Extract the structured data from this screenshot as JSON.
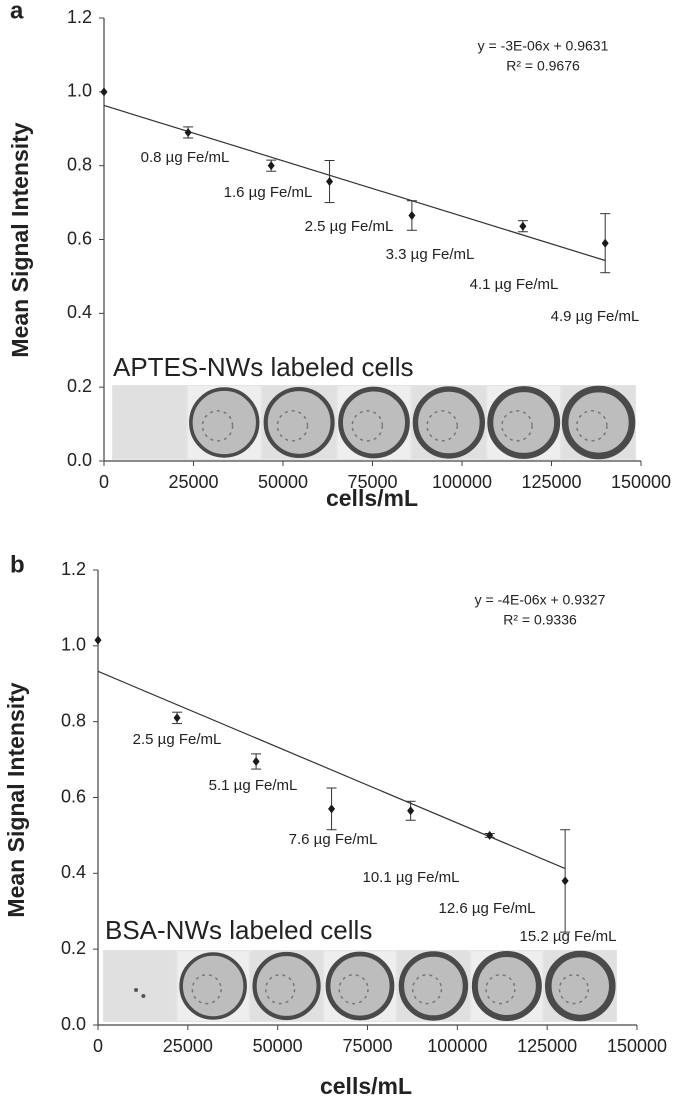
{
  "chart_data": [
    {
      "type": "scatter",
      "panel_label": "a",
      "xlabel": "cells/mL",
      "ylabel": "Mean Signal Intensity",
      "x": [
        0,
        23500,
        46700,
        63000,
        86000,
        117000,
        140000
      ],
      "values": [
        1.0,
        0.89,
        0.8,
        0.757,
        0.665,
        0.636,
        0.59
      ],
      "errors": [
        0,
        0.015,
        0.015,
        0.057,
        0.04,
        0.015,
        0.08
      ],
      "color": "#1a1a1a",
      "xlim": [
        0,
        150000
      ],
      "xticks": [
        0,
        25000,
        50000,
        75000,
        100000,
        125000,
        150000
      ],
      "ylim": [
        0,
        1.2
      ],
      "yticks": [
        {
          "value": 0,
          "label": "0.0"
        },
        {
          "value": 0.2,
          "label": "0.2"
        },
        {
          "value": 0.4,
          "label": "0.4"
        },
        {
          "value": 0.6,
          "label": "0.6"
        },
        {
          "value": 0.8,
          "label": "0.8"
        },
        {
          "value": 1.0,
          "label": "1.0"
        },
        {
          "value": 1.2,
          "label": "1.2"
        }
      ],
      "trendline": {
        "equation": "y = -3E-06x + 0.9631",
        "r2": "R² = 0.9676",
        "slope": -3e-06,
        "intercept": 0.9631
      },
      "annotations": [
        "0.8 µg Fe/mL",
        "1.6 µg Fe/mL",
        "2.5 µg Fe/mL",
        "3.3 µg Fe/mL",
        "4.1 µg Fe/mL",
        "4.9 µg Fe/mL"
      ],
      "inset_label": "APTES-NWs labeled cells"
    },
    {
      "type": "scatter",
      "panel_label": "b",
      "xlabel": "cells/mL",
      "ylabel": "Mean Signal Intensity",
      "x": [
        0,
        22000,
        44000,
        65000,
        87000,
        109000,
        130000
      ],
      "values": [
        1.015,
        0.81,
        0.695,
        0.57,
        0.565,
        0.5,
        0.38
      ],
      "errors": [
        0,
        0.015,
        0.02,
        0.055,
        0.025,
        0.005,
        0.135
      ],
      "color": "#1a1a1a",
      "xlim": [
        0,
        150000
      ],
      "xticks": [
        0,
        25000,
        50000,
        75000,
        100000,
        125000,
        150000
      ],
      "ylim": [
        0,
        1.2
      ],
      "yticks": [
        {
          "value": 0,
          "label": "0.0"
        },
        {
          "value": 0.2,
          "label": "0.2"
        },
        {
          "value": 0.4,
          "label": "0.4"
        },
        {
          "value": 0.6,
          "label": "0.6"
        },
        {
          "value": 0.8,
          "label": "0.8"
        },
        {
          "value": 1.0,
          "label": "1.0"
        },
        {
          "value": 1.2,
          "label": "1.2"
        }
      ],
      "trendline": {
        "equation": "y = -4E-06x + 0.9327",
        "r2": "R² = 0.9336",
        "slope": -4e-06,
        "intercept": 0.9327
      },
      "annotations": [
        "2.5 µg Fe/mL",
        "5.1 µg Fe/mL",
        "7.6 µg Fe/mL",
        "10.1 µg Fe/mL",
        "12.6 µg Fe/mL",
        "15.2 µg Fe/mL"
      ],
      "inset_label": "BSA-NWs labeled cells"
    }
  ]
}
